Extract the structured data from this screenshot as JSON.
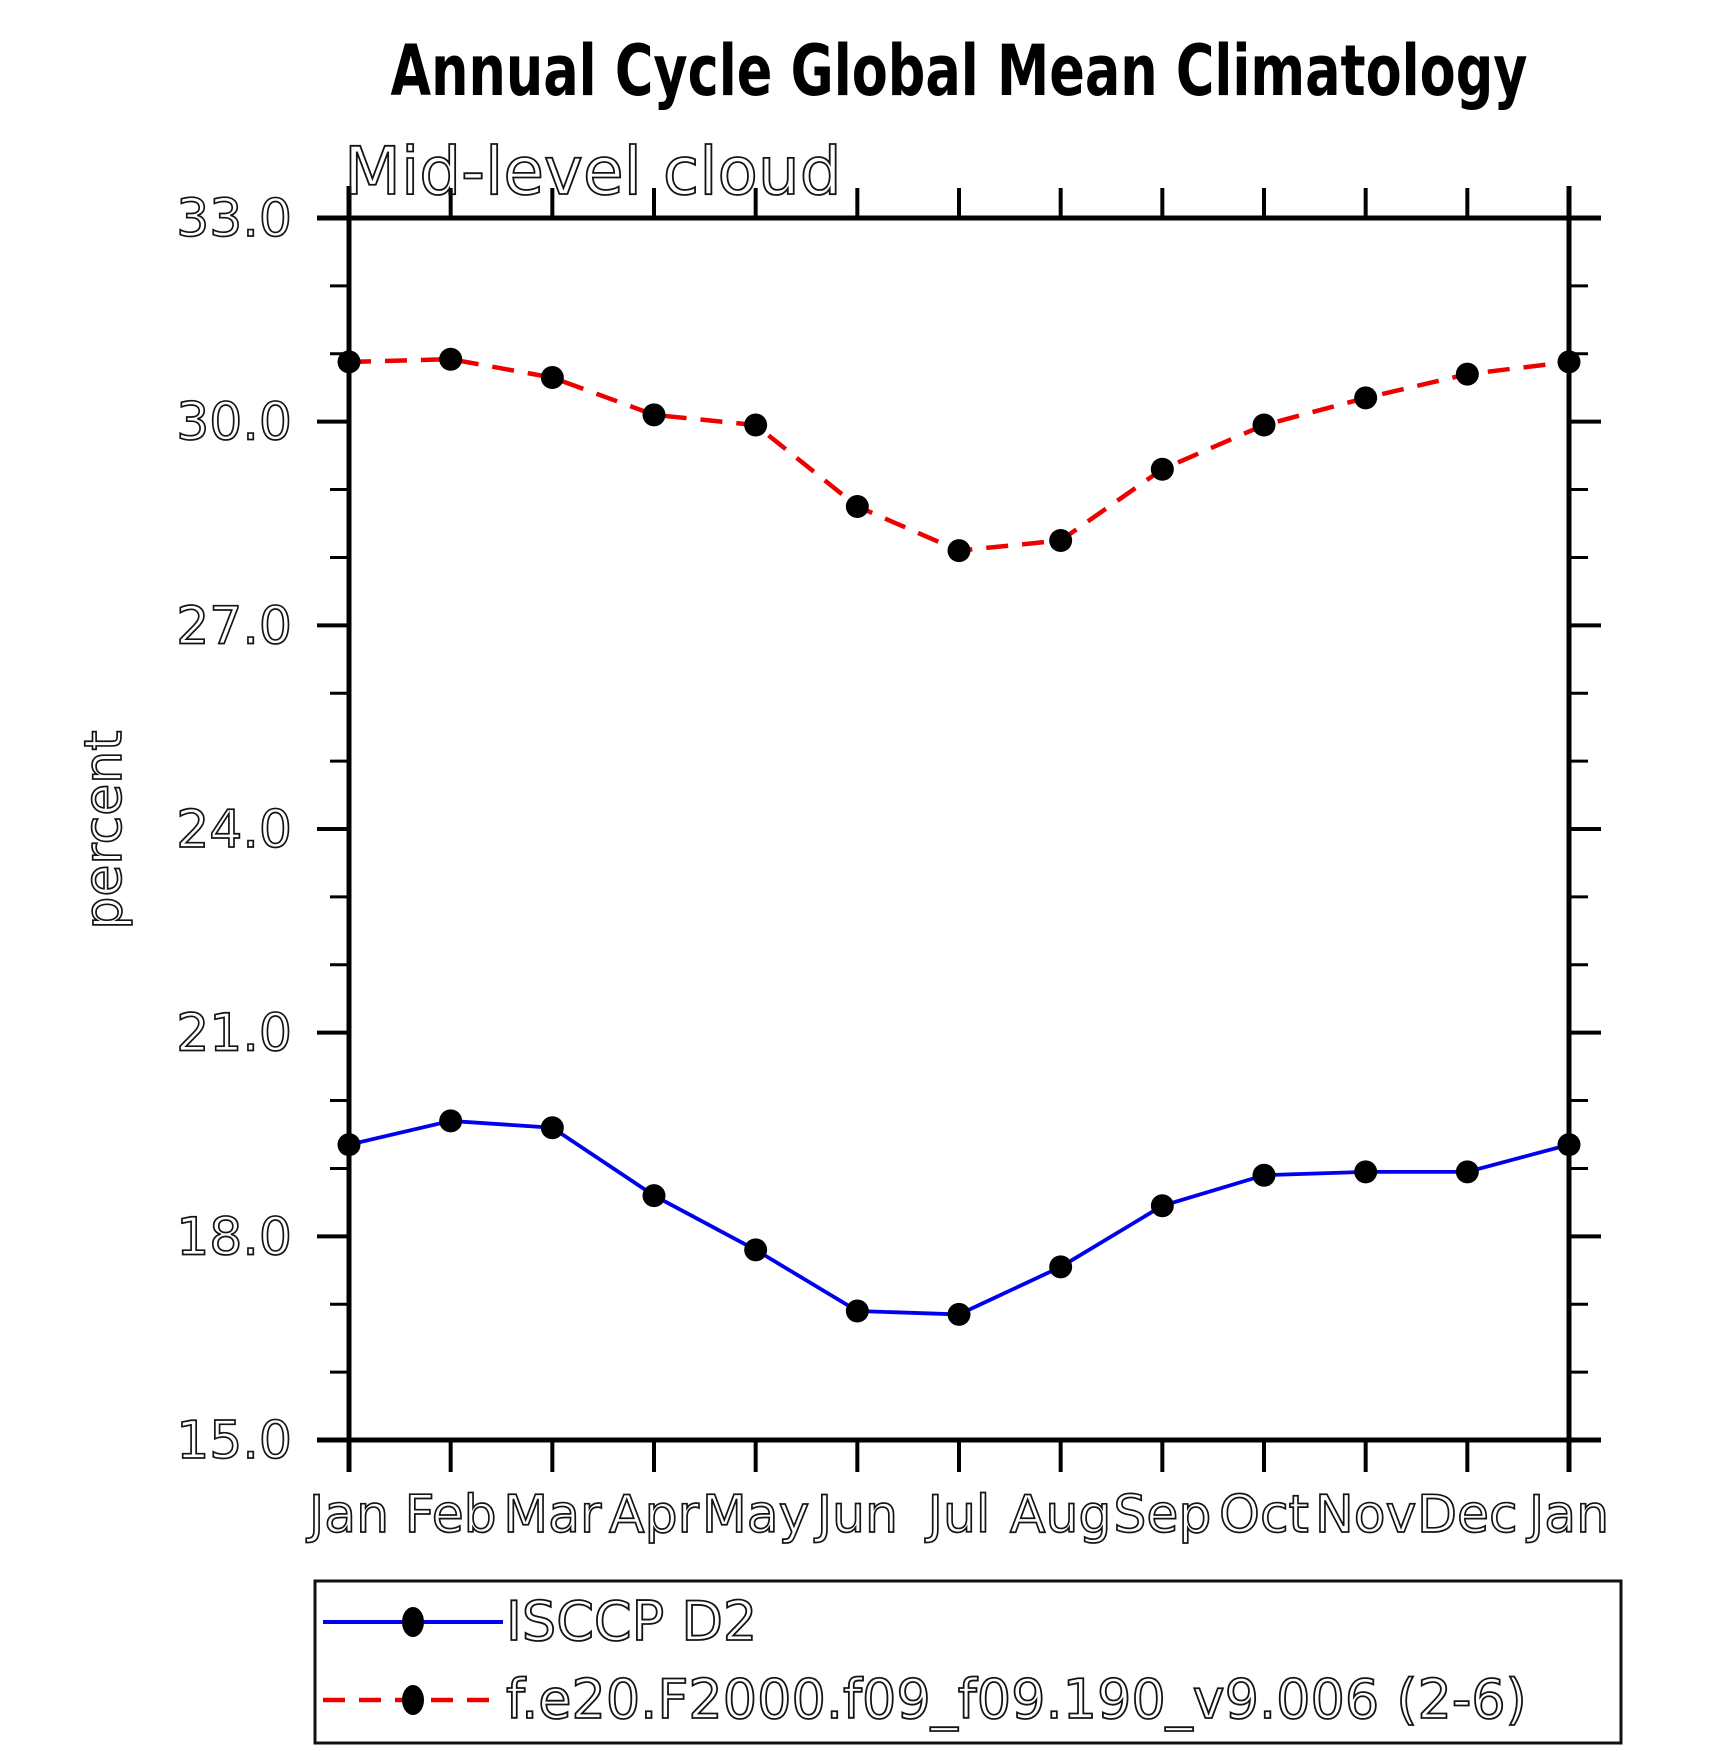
{
  "header": {
    "title": "Annual Cycle Global Mean Climatology",
    "subtitle": "Mid-level cloud"
  },
  "chart_data": {
    "type": "line",
    "title": "Annual Cycle Global Mean Climatology",
    "subtitle": "Mid-level cloud",
    "xlabel": "",
    "ylabel": "percent",
    "ylim": [
      15.0,
      33.0
    ],
    "yticks": [
      15.0,
      18.0,
      21.0,
      24.0,
      27.0,
      30.0,
      33.0
    ],
    "ytick_labels": [
      "15.0",
      "18.0",
      "21.0",
      "24.0",
      "27.0",
      "30.0",
      "33.0"
    ],
    "yminor_step": 1.0,
    "grid": "off",
    "legend_position": "bottom",
    "categories": [
      "Jan",
      "Feb",
      "Mar",
      "Apr",
      "May",
      "Jun",
      "Jul",
      "Aug",
      "Sep",
      "Oct",
      "Nov",
      "Dec",
      "Jan"
    ],
    "series": [
      {
        "name": "ISCCP D2",
        "color": "#0000ee",
        "style": "solid",
        "marker": "filled-circle",
        "marker_color": "#000000",
        "values": [
          19.35,
          19.7,
          19.6,
          18.6,
          17.8,
          16.9,
          16.85,
          17.55,
          18.45,
          18.9,
          18.95,
          18.95,
          19.35
        ]
      },
      {
        "name": "f.e20.F2000.f09_f09.190_v9.006 (2-6)",
        "color": "#ee0000",
        "style": "dashed",
        "marker": "filled-circle",
        "marker_color": "#000000",
        "values": [
          30.88,
          30.92,
          30.65,
          30.1,
          29.95,
          28.75,
          28.1,
          28.25,
          29.3,
          29.95,
          30.35,
          30.7,
          30.88
        ]
      }
    ]
  },
  "legend": {
    "entries": [
      {
        "label": "ISCCP D2"
      },
      {
        "label": "f.e20.F2000.f09_f09.190_v9.006 (2-6)"
      }
    ]
  }
}
